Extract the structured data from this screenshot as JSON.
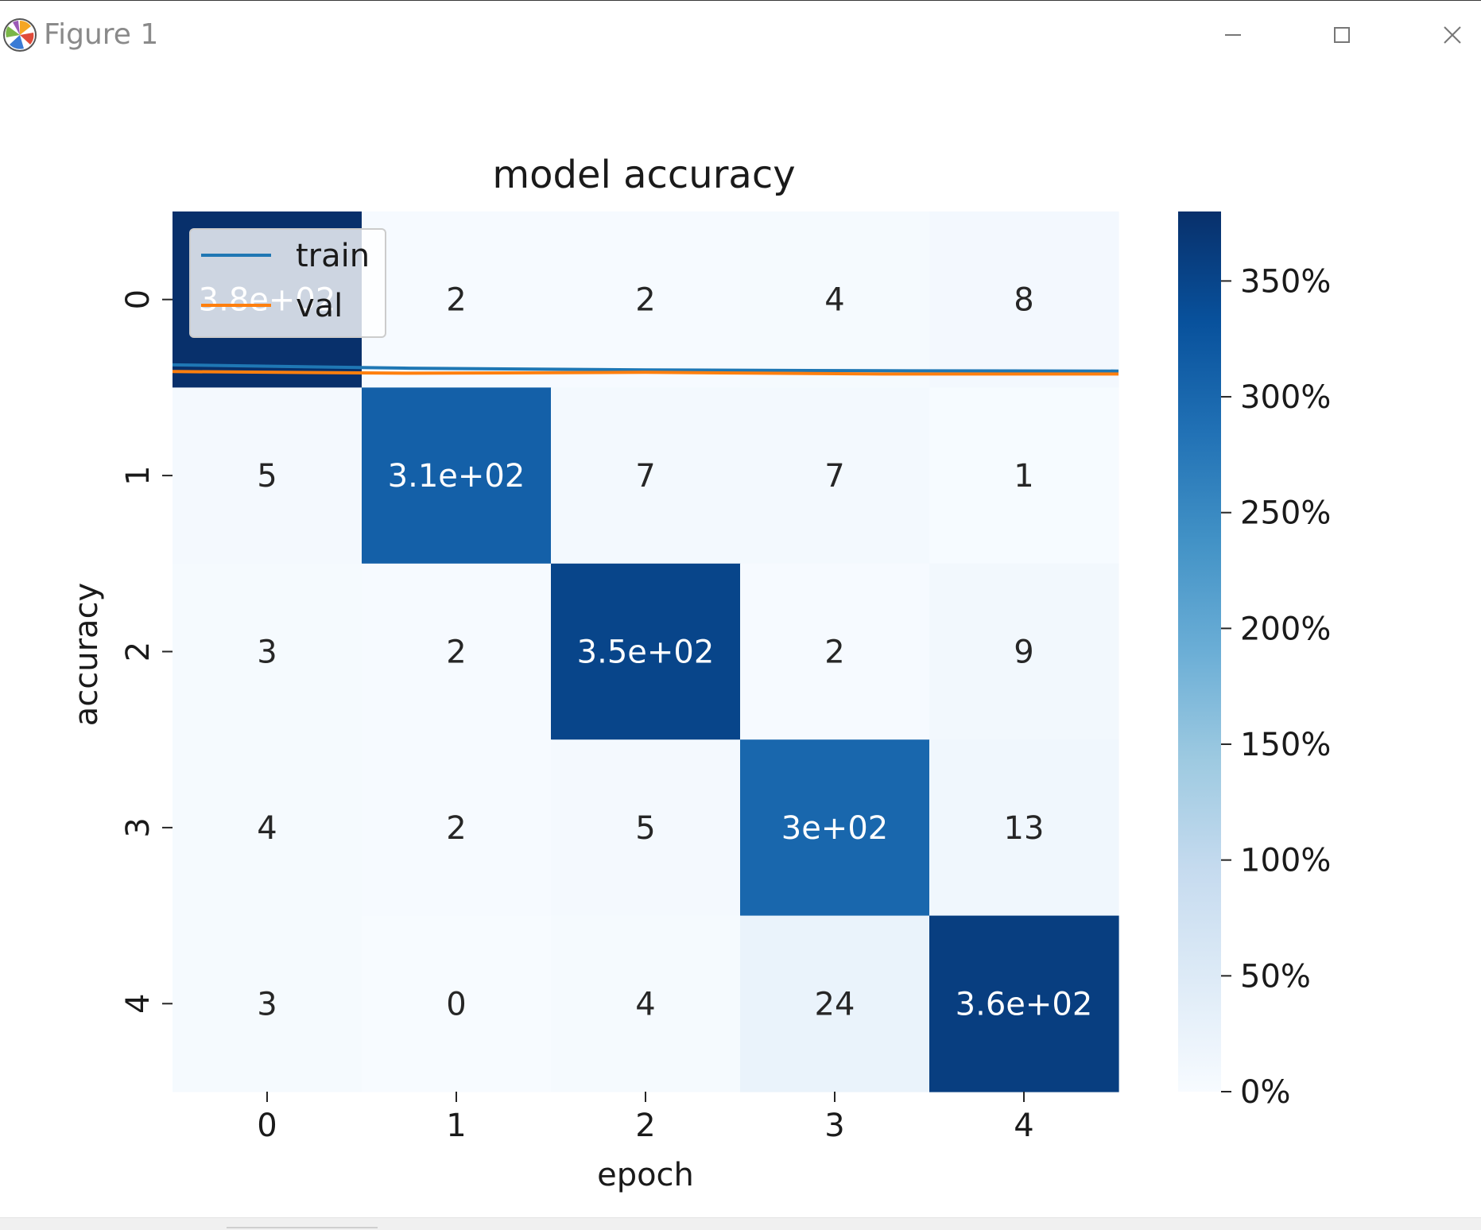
{
  "window": {
    "title": "Figure 1",
    "icons": {
      "app": "matplotlib-logo-icon",
      "minimize": "minimize-icon",
      "maximize": "maximize-icon",
      "close": "close-icon"
    }
  },
  "chart_data": {
    "type": "heatmap",
    "title": "model accuracy",
    "xlabel": "epoch",
    "ylabel": "accuracy",
    "x_ticks": [
      "0",
      "1",
      "2",
      "3",
      "4"
    ],
    "y_ticks": [
      "0",
      "1",
      "2",
      "3",
      "4"
    ],
    "matrix": [
      [
        380,
        2,
        2,
        4,
        8
      ],
      [
        5,
        310,
        7,
        7,
        1
      ],
      [
        3,
        2,
        350,
        2,
        9
      ],
      [
        4,
        2,
        5,
        300,
        13
      ],
      [
        3,
        0,
        4,
        24,
        360
      ]
    ],
    "annotations": [
      [
        "3.8e+02",
        "2",
        "2",
        "4",
        "8"
      ],
      [
        "5",
        "3.1e+02",
        "7",
        "7",
        "1"
      ],
      [
        "3",
        "2",
        "3.5e+02",
        "2",
        "9"
      ],
      [
        "4",
        "2",
        "5",
        "3e+02",
        "13"
      ],
      [
        "3",
        "0",
        "4",
        "24",
        "3.6e+02"
      ]
    ],
    "colormap": "Blues",
    "value_range": [
      0,
      380
    ],
    "colorbar": {
      "ticks": [
        0,
        50,
        100,
        150,
        200,
        250,
        300,
        350
      ],
      "tick_labels": [
        "0%",
        "50%",
        "100%",
        "150%",
        "200%",
        "250%",
        "300%",
        "350%"
      ]
    },
    "series": [
      {
        "name": "train",
        "color": "#1f77b4",
        "x": [
          0,
          1,
          2,
          3,
          4
        ],
        "y": [
          0.99,
          1.01,
          1.02,
          1.025,
          1.027
        ]
      },
      {
        "name": "val",
        "color": "#ff7f0e",
        "x": [
          0,
          1,
          2,
          3,
          4
        ],
        "y": [
          1.03,
          1.04,
          1.035,
          1.045,
          1.045
        ]
      }
    ],
    "legend": {
      "placement": "upper-left"
    }
  }
}
